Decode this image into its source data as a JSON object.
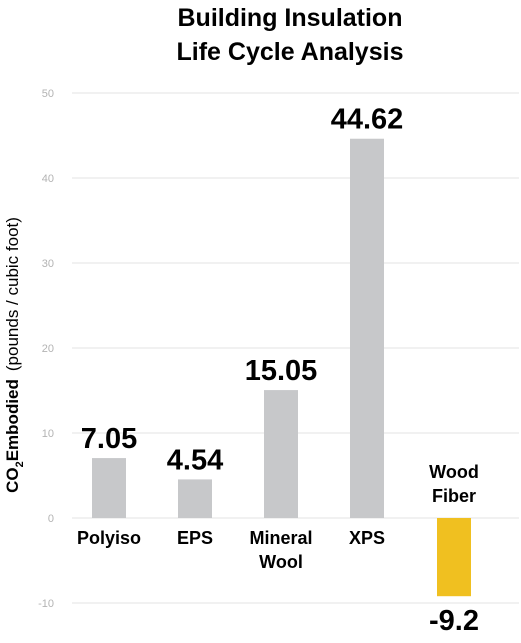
{
  "chart_data": {
    "type": "bar",
    "title_lines": [
      "Building Insulation",
      "Life Cycle Analysis"
    ],
    "ylabel": {
      "co2_prefix": "CO",
      "subscript": "2",
      "bold_word": "Embodied",
      "units": "(pounds / cubic foot)"
    },
    "ylim": [
      -10,
      50
    ],
    "yticks": [
      50,
      40,
      30,
      20,
      10,
      0,
      -10
    ],
    "grid": true,
    "categories": [
      {
        "lines": [
          "Polyiso"
        ]
      },
      {
        "lines": [
          "EPS"
        ]
      },
      {
        "lines": [
          "Mineral",
          "Wool"
        ]
      },
      {
        "lines": [
          "XPS"
        ]
      },
      {
        "lines": [
          "Wood",
          "Fiber"
        ]
      }
    ],
    "values": [
      7.05,
      4.54,
      15.05,
      44.62,
      -9.2
    ],
    "value_labels": [
      "7.05",
      "4.54",
      "15.05",
      "44.62",
      "-9.2"
    ],
    "colors": [
      "#c7c8ca",
      "#c7c8ca",
      "#c7c8ca",
      "#c7c8ca",
      "#f0c020"
    ]
  }
}
